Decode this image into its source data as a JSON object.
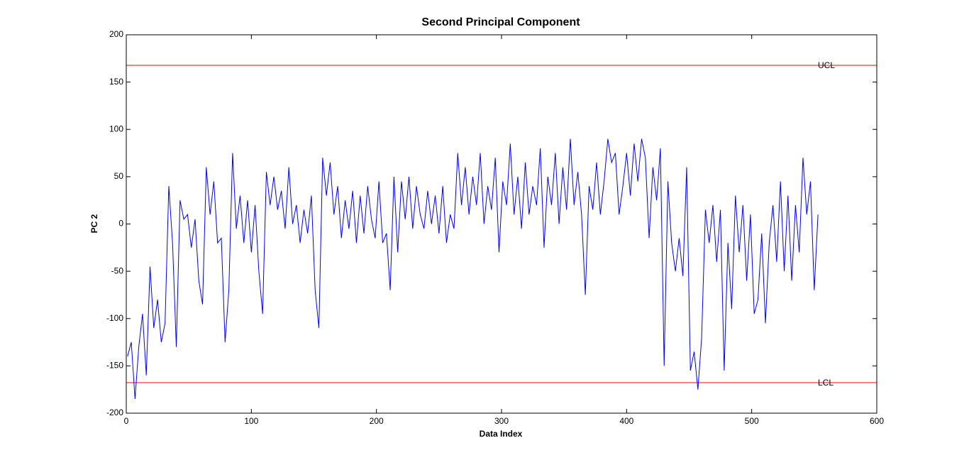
{
  "chart_data": {
    "type": "line",
    "title": "Second Principal Component",
    "x_label": "Data Index",
    "y_label": "PC 2",
    "x": [
      1,
      4,
      7,
      10,
      13,
      16,
      19,
      22,
      25,
      28,
      31,
      34,
      37,
      40,
      43,
      46,
      49,
      52,
      55,
      58,
      61,
      64,
      67,
      70,
      73,
      76,
      79,
      82,
      85,
      88,
      91,
      94,
      97,
      100,
      103,
      106,
      109,
      112,
      115,
      118,
      121,
      124,
      127,
      130,
      133,
      136,
      139,
      142,
      145,
      148,
      151,
      154,
      157,
      160,
      163,
      166,
      169,
      172,
      175,
      178,
      181,
      184,
      187,
      190,
      193,
      196,
      199,
      202,
      205,
      208,
      211,
      214,
      217,
      220,
      223,
      226,
      229,
      232,
      235,
      238,
      241,
      244,
      247,
      250,
      253,
      256,
      259,
      262,
      265,
      268,
      271,
      274,
      277,
      280,
      283,
      286,
      289,
      292,
      295,
      298,
      301,
      304,
      307,
      310,
      313,
      316,
      319,
      322,
      325,
      328,
      331,
      334,
      337,
      340,
      343,
      346,
      349,
      352,
      355,
      358,
      361,
      364,
      367,
      370,
      373,
      376,
      379,
      382,
      385,
      388,
      391,
      394,
      397,
      400,
      403,
      406,
      409,
      412,
      415,
      418,
      421,
      424,
      427,
      430,
      433,
      436,
      439,
      442,
      445,
      448,
      451,
      454,
      457,
      460,
      463,
      466,
      469,
      472,
      475,
      478,
      481,
      484,
      487,
      490,
      493,
      496,
      499,
      502,
      505,
      508,
      511,
      514,
      517,
      520,
      523,
      526,
      529,
      532,
      535,
      538,
      541,
      544,
      547,
      550,
      553
    ],
    "series": [
      {
        "color": "#0000ff",
        "values": [
          -140,
          -125,
          -185,
          -130,
          -95,
          -160,
          -45,
          -110,
          -80,
          -125,
          -105,
          40,
          -20,
          -130,
          25,
          5,
          10,
          -25,
          5,
          -60,
          -85,
          60,
          10,
          45,
          -20,
          -15,
          -125,
          -70,
          75,
          -5,
          30,
          -20,
          25,
          -30,
          20,
          -50,
          -95,
          55,
          20,
          50,
          15,
          35,
          -5,
          60,
          0,
          20,
          -20,
          15,
          -10,
          30,
          -70,
          -110,
          70,
          30,
          65,
          10,
          40,
          -15,
          25,
          -5,
          35,
          -20,
          30,
          -10,
          40,
          5,
          -15,
          45,
          -20,
          -10,
          -70,
          50,
          -30,
          45,
          5,
          50,
          -5,
          40,
          10,
          -5,
          35,
          0,
          30,
          -10,
          40,
          -20,
          10,
          -5,
          75,
          20,
          60,
          10,
          50,
          20,
          75,
          0,
          40,
          15,
          70,
          -30,
          45,
          20,
          85,
          10,
          50,
          -5,
          65,
          10,
          40,
          20,
          80,
          -25,
          50,
          20,
          75,
          0,
          60,
          15,
          90,
          20,
          55,
          10,
          -75,
          40,
          15,
          65,
          10,
          45,
          90,
          65,
          75,
          10,
          40,
          75,
          30,
          85,
          45,
          90,
          70,
          -15,
          60,
          25,
          80,
          -150,
          45,
          -20,
          -50,
          -15,
          -55,
          60,
          -155,
          -135,
          -175,
          -120,
          15,
          -20,
          20,
          -40,
          15,
          -155,
          -20,
          -90,
          30,
          -30,
          20,
          -60,
          10,
          -95,
          -80,
          -10,
          -105,
          -20,
          20,
          -40,
          45,
          -50,
          30,
          -60,
          20,
          -30,
          70,
          10,
          45,
          -70,
          10
        ]
      }
    ],
    "reference_lines": [
      {
        "label": "UCL",
        "value": 167.7,
        "color": "#ff0000"
      },
      {
        "label": "LCL",
        "value": -167.7,
        "color": "#ff0000"
      }
    ],
    "xlim": [
      0,
      600
    ],
    "xticks": [
      0,
      100,
      200,
      300,
      400,
      500,
      600
    ],
    "ylim": [
      -200,
      200
    ],
    "yticks": [
      -200,
      -150,
      -100,
      -50,
      0,
      50,
      100,
      150,
      200
    ]
  }
}
